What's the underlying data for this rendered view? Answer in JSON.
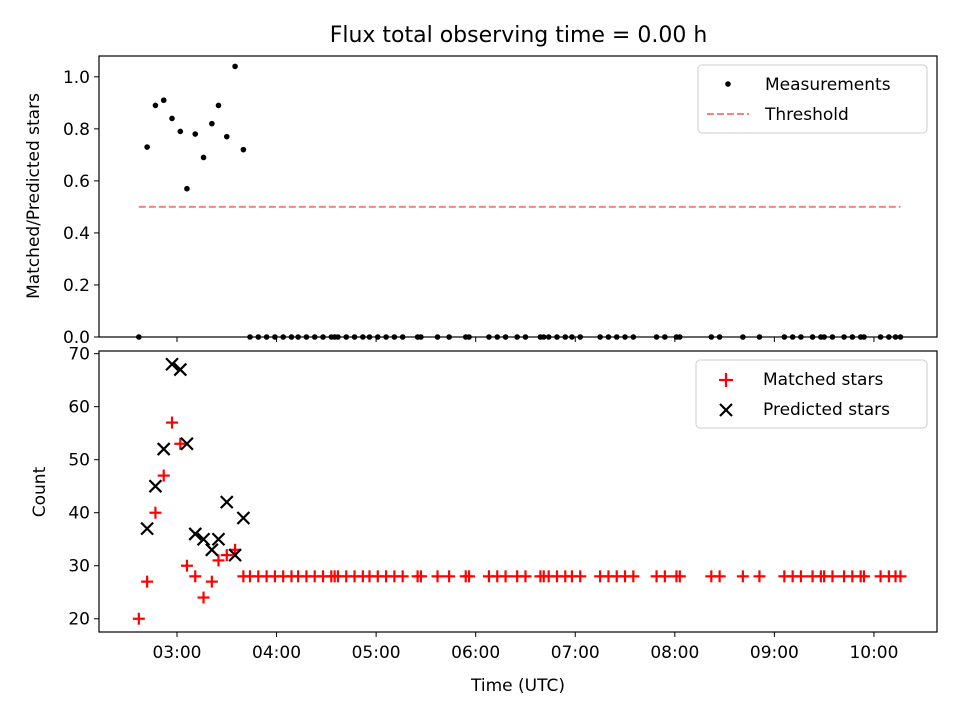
{
  "title": "Flux total observing time = 0.00 h",
  "chart_data": [
    {
      "type": "scatter",
      "ylabel": "Matched/Predicted stars",
      "ylim": [
        0,
        1.08
      ],
      "yticks": [
        "0.0",
        "0.2",
        "0.4",
        "0.6",
        "0.8",
        "1.0"
      ],
      "ytick_values": [
        0,
        0.2,
        0.4,
        0.6,
        0.8,
        1.0
      ],
      "grid": false,
      "legend_position": "top-right",
      "legend": [
        "Measurements",
        "Threshold"
      ],
      "threshold": {
        "name": "Threshold",
        "value": 0.5,
        "x_start": "02:37",
        "x_end": "10:16",
        "color": "#ff7f7f"
      },
      "series": [
        {
          "name": "Measurements",
          "color": "#000000",
          "points": [
            [
              "02:37",
              0
            ],
            [
              "02:42",
              0.73
            ],
            [
              "02:47",
              0.89
            ],
            [
              "02:52",
              0.91
            ],
            [
              "02:57",
              0.84
            ],
            [
              "03:02",
              0.79
            ],
            [
              "03:06",
              0.57
            ],
            [
              "03:11",
              0.78
            ],
            [
              "03:16",
              0.69
            ],
            [
              "03:21",
              0.82
            ],
            [
              "03:25",
              0.89
            ],
            [
              "03:30",
              0.77
            ],
            [
              "03:35",
              1.04
            ],
            [
              "03:40",
              0.72
            ],
            [
              "03:44",
              0
            ],
            [
              "03:49",
              0
            ],
            [
              "03:54",
              0
            ],
            [
              "03:59",
              0
            ],
            [
              "04:04",
              0
            ],
            [
              "04:09",
              0
            ],
            [
              "04:13",
              0
            ],
            [
              "04:18",
              0
            ],
            [
              "04:23",
              0
            ],
            [
              "04:28",
              0
            ],
            [
              "04:33",
              0
            ],
            [
              "04:35",
              0
            ],
            [
              "04:37",
              0
            ],
            [
              "04:42",
              0
            ],
            [
              "04:47",
              0
            ],
            [
              "04:52",
              0
            ],
            [
              "04:56",
              0
            ],
            [
              "05:01",
              0
            ],
            [
              "05:06",
              0
            ],
            [
              "05:11",
              0
            ],
            [
              "05:16",
              0
            ],
            [
              "05:25",
              0
            ],
            [
              "05:27",
              0
            ],
            [
              "05:37",
              0
            ],
            [
              "05:44",
              0
            ],
            [
              "05:54",
              0
            ],
            [
              "05:56",
              0
            ],
            [
              "06:08",
              0
            ],
            [
              "06:13",
              0
            ],
            [
              "06:18",
              0
            ],
            [
              "06:25",
              0
            ],
            [
              "06:30",
              0
            ],
            [
              "06:39",
              0
            ],
            [
              "06:41",
              0
            ],
            [
              "06:44",
              0
            ],
            [
              "06:49",
              0
            ],
            [
              "06:54",
              0
            ],
            [
              "06:58",
              0
            ],
            [
              "07:03",
              0
            ],
            [
              "07:15",
              0
            ],
            [
              "07:20",
              0
            ],
            [
              "07:25",
              0
            ],
            [
              "07:30",
              0
            ],
            [
              "07:35",
              0
            ],
            [
              "07:49",
              0
            ],
            [
              "07:54",
              0
            ],
            [
              "08:01",
              0
            ],
            [
              "08:03",
              0
            ],
            [
              "08:22",
              0
            ],
            [
              "08:27",
              0
            ],
            [
              "08:41",
              0
            ],
            [
              "08:51",
              0
            ],
            [
              "09:06",
              0
            ],
            [
              "09:11",
              0
            ],
            [
              "09:16",
              0
            ],
            [
              "09:23",
              0
            ],
            [
              "09:28",
              0
            ],
            [
              "09:30",
              0
            ],
            [
              "09:35",
              0
            ],
            [
              "09:42",
              0
            ],
            [
              "09:47",
              0
            ],
            [
              "09:52",
              0
            ],
            [
              "09:54",
              0
            ],
            [
              "10:04",
              0
            ],
            [
              "10:09",
              0
            ],
            [
              "10:13",
              0
            ],
            [
              "10:16",
              0
            ]
          ]
        }
      ]
    },
    {
      "type": "scatter",
      "xlabel": "Time (UTC)",
      "ylabel": "Count",
      "ylim": [
        17.5,
        70.5
      ],
      "yticks": [
        "20",
        "30",
        "40",
        "50",
        "60",
        "70"
      ],
      "ytick_values": [
        20,
        30,
        40,
        50,
        60,
        70
      ],
      "xlim": [
        "02:13",
        "10:38"
      ],
      "xticks": [
        "03:00",
        "04:00",
        "05:00",
        "06:00",
        "07:00",
        "08:00",
        "09:00",
        "10:00"
      ],
      "grid": false,
      "legend_position": "top-right",
      "legend": [
        "Matched stars",
        "Predicted stars"
      ],
      "series": [
        {
          "name": "Matched stars",
          "marker": "plus",
          "color": "#ff0000",
          "points": [
            [
              "02:37",
              20
            ],
            [
              "02:42",
              27
            ],
            [
              "02:47",
              40
            ],
            [
              "02:52",
              47
            ],
            [
              "02:57",
              57
            ],
            [
              "03:02",
              53
            ],
            [
              "03:06",
              30
            ],
            [
              "03:11",
              28
            ],
            [
              "03:16",
              24
            ],
            [
              "03:21",
              27
            ],
            [
              "03:25",
              31
            ],
            [
              "03:30",
              32
            ],
            [
              "03:35",
              33
            ],
            [
              "03:40",
              28
            ],
            [
              "03:44",
              28
            ],
            [
              "03:49",
              28
            ],
            [
              "03:54",
              28
            ],
            [
              "03:59",
              28
            ],
            [
              "04:04",
              28
            ],
            [
              "04:09",
              28
            ],
            [
              "04:13",
              28
            ],
            [
              "04:18",
              28
            ],
            [
              "04:23",
              28
            ],
            [
              "04:28",
              28
            ],
            [
              "04:33",
              28
            ],
            [
              "04:35",
              28
            ],
            [
              "04:37",
              28
            ],
            [
              "04:42",
              28
            ],
            [
              "04:47",
              28
            ],
            [
              "04:52",
              28
            ],
            [
              "04:56",
              28
            ],
            [
              "05:01",
              28
            ],
            [
              "05:06",
              28
            ],
            [
              "05:11",
              28
            ],
            [
              "05:16",
              28
            ],
            [
              "05:25",
              28
            ],
            [
              "05:27",
              28
            ],
            [
              "05:37",
              28
            ],
            [
              "05:44",
              28
            ],
            [
              "05:54",
              28
            ],
            [
              "05:56",
              28
            ],
            [
              "06:08",
              28
            ],
            [
              "06:13",
              28
            ],
            [
              "06:18",
              28
            ],
            [
              "06:25",
              28
            ],
            [
              "06:30",
              28
            ],
            [
              "06:39",
              28
            ],
            [
              "06:41",
              28
            ],
            [
              "06:44",
              28
            ],
            [
              "06:49",
              28
            ],
            [
              "06:54",
              28
            ],
            [
              "06:58",
              28
            ],
            [
              "07:03",
              28
            ],
            [
              "07:15",
              28
            ],
            [
              "07:20",
              28
            ],
            [
              "07:25",
              28
            ],
            [
              "07:30",
              28
            ],
            [
              "07:35",
              28
            ],
            [
              "07:49",
              28
            ],
            [
              "07:54",
              28
            ],
            [
              "08:01",
              28
            ],
            [
              "08:03",
              28
            ],
            [
              "08:22",
              28
            ],
            [
              "08:27",
              28
            ],
            [
              "08:41",
              28
            ],
            [
              "08:51",
              28
            ],
            [
              "09:06",
              28
            ],
            [
              "09:11",
              28
            ],
            [
              "09:16",
              28
            ],
            [
              "09:23",
              28
            ],
            [
              "09:28",
              28
            ],
            [
              "09:30",
              28
            ],
            [
              "09:35",
              28
            ],
            [
              "09:42",
              28
            ],
            [
              "09:47",
              28
            ],
            [
              "09:52",
              28
            ],
            [
              "09:54",
              28
            ],
            [
              "10:04",
              28
            ],
            [
              "10:09",
              28
            ],
            [
              "10:13",
              28
            ],
            [
              "10:16",
              28
            ]
          ]
        },
        {
          "name": "Predicted stars",
          "marker": "x",
          "color": "#000000",
          "points": [
            [
              "02:42",
              37
            ],
            [
              "02:47",
              45
            ],
            [
              "02:52",
              52
            ],
            [
              "02:57",
              68
            ],
            [
              "03:02",
              67
            ],
            [
              "03:06",
              53
            ],
            [
              "03:11",
              36
            ],
            [
              "03:16",
              35
            ],
            [
              "03:21",
              33
            ],
            [
              "03:25",
              35
            ],
            [
              "03:30",
              42
            ],
            [
              "03:35",
              32
            ],
            [
              "03:40",
              39
            ]
          ]
        }
      ]
    }
  ]
}
